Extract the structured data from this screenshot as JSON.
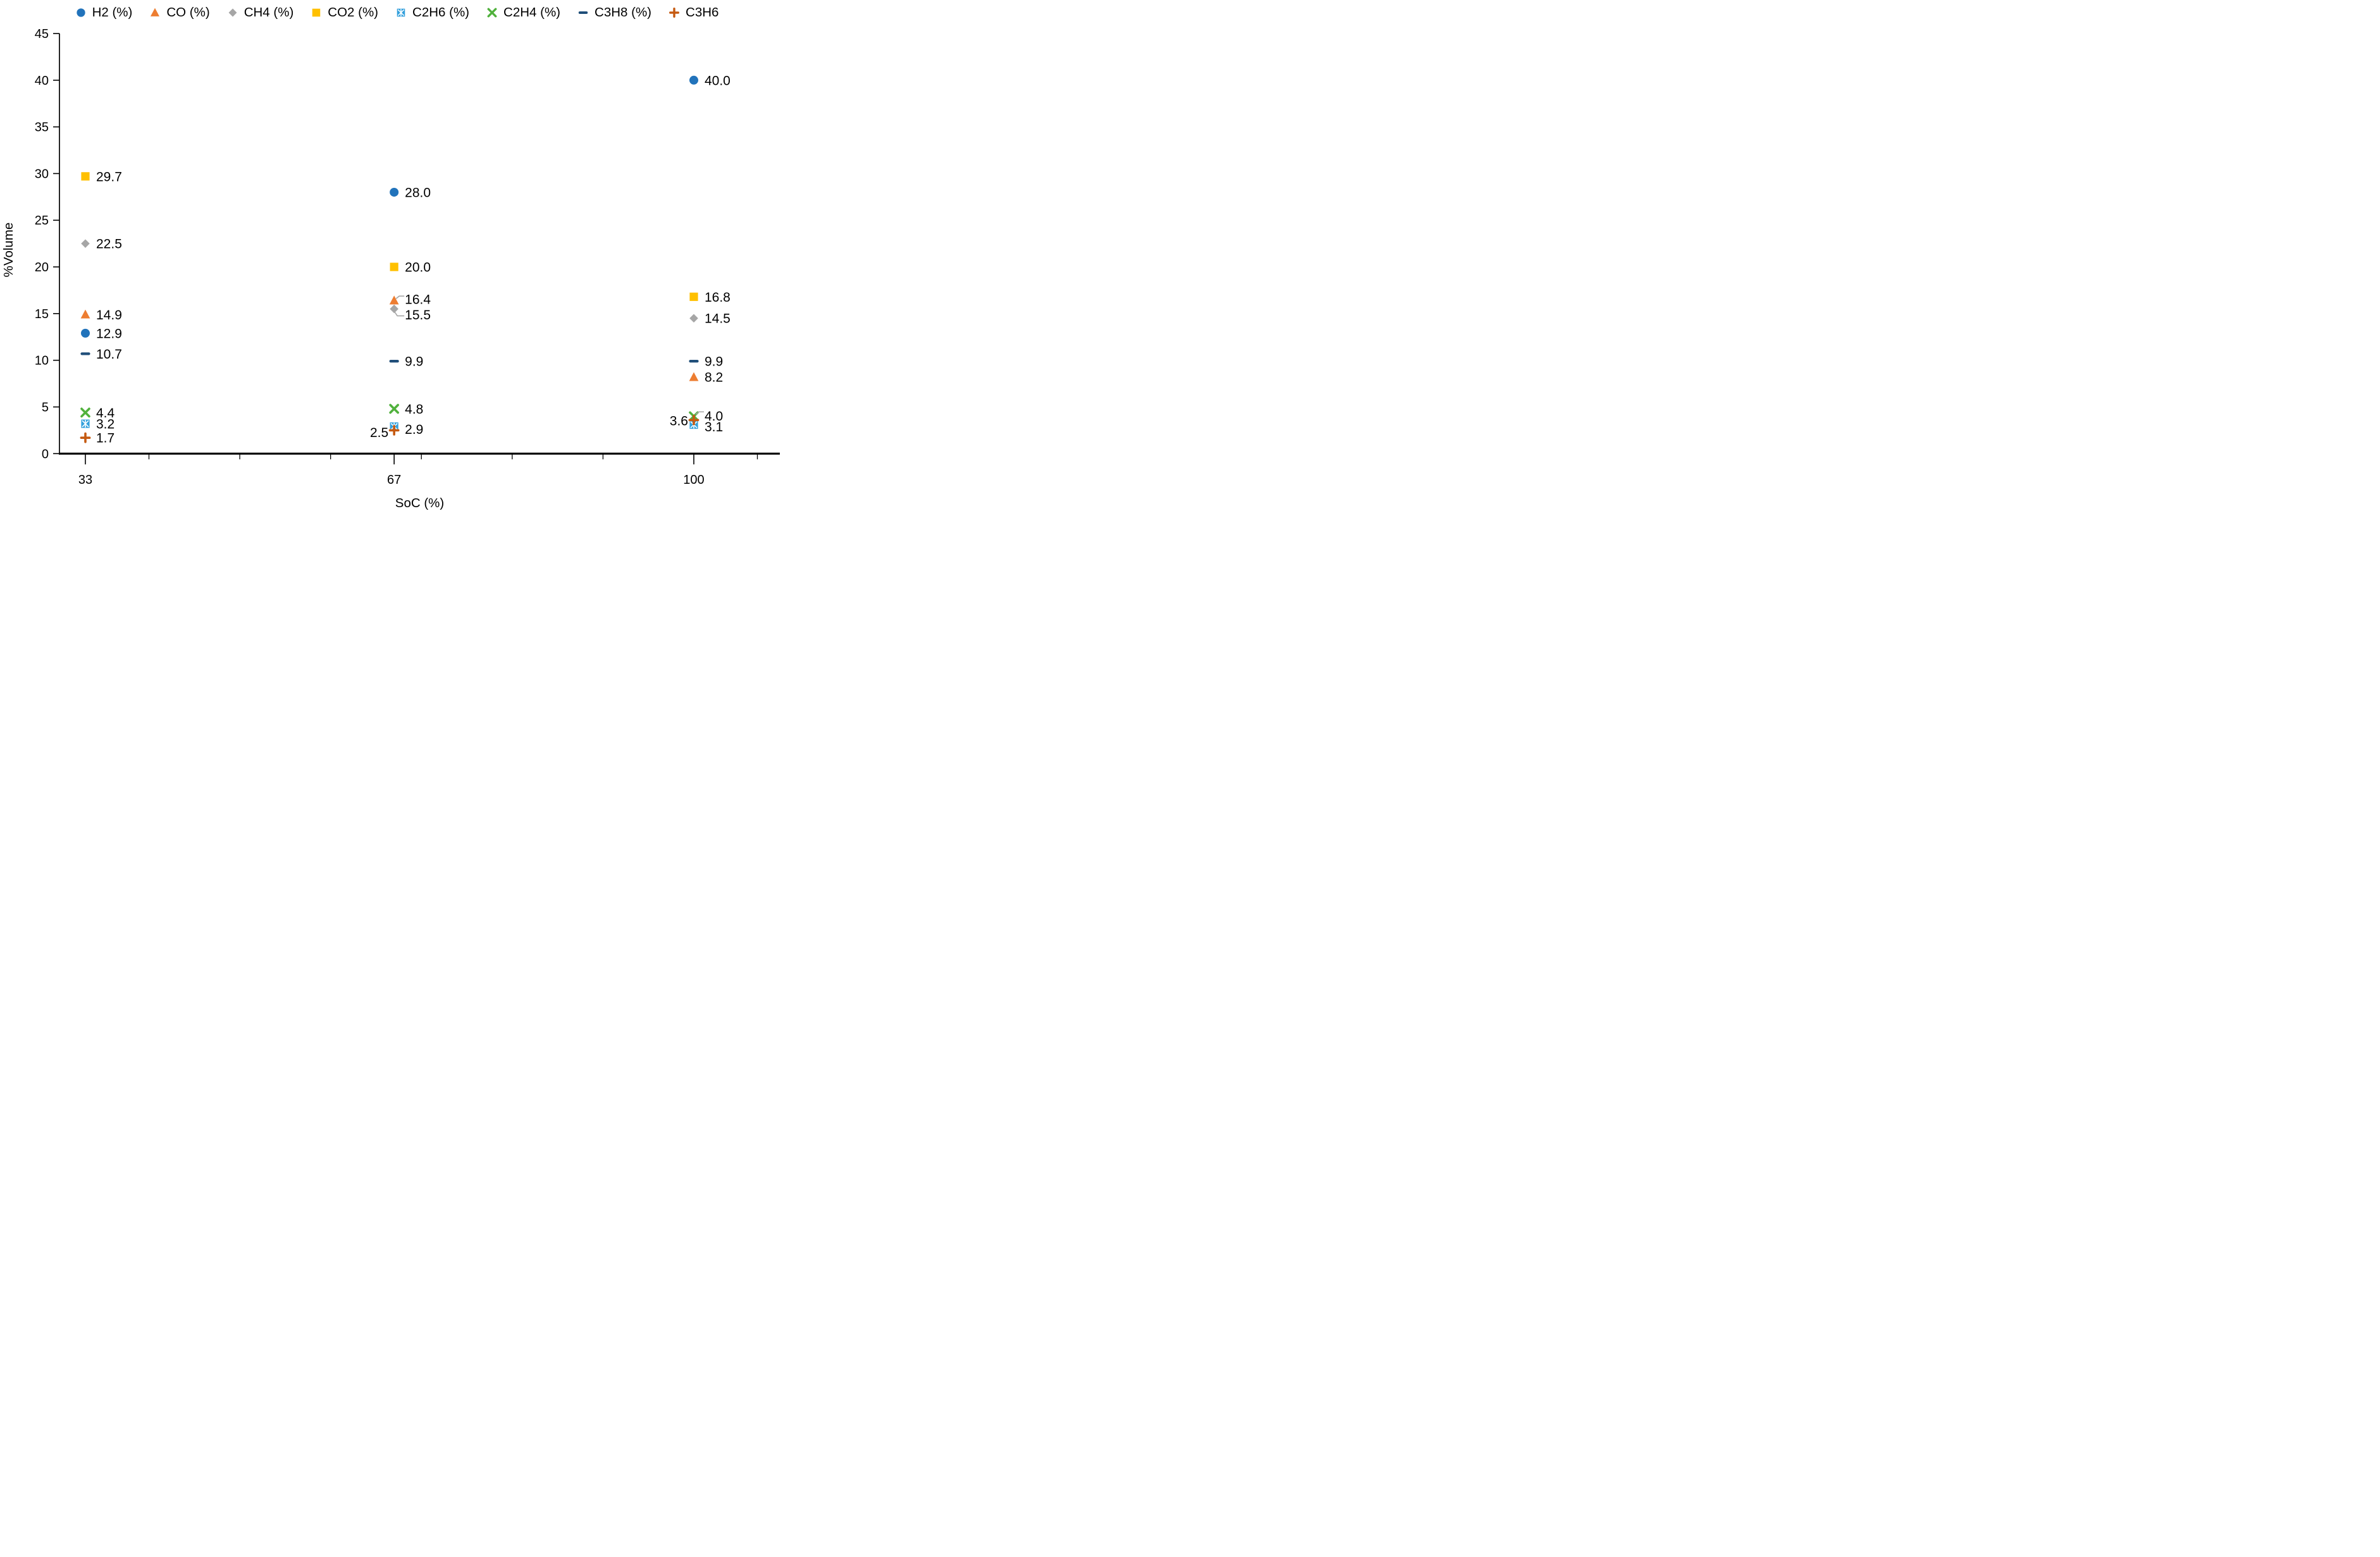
{
  "chart_data": {
    "type": "scatter",
    "title": "",
    "xlabel": "SoC (%)",
    "ylabel": "%Volume",
    "x_categories": [
      33,
      67,
      100
    ],
    "x_tick_labels": [
      "33",
      "67",
      "100"
    ],
    "xlim": [
      30,
      109
    ],
    "ylim": [
      0,
      45
    ],
    "y_ticks": [
      0,
      5,
      10,
      15,
      20,
      25,
      30,
      35,
      40,
      45
    ],
    "x_minor_ticks": [
      40,
      50,
      60,
      70,
      80,
      90,
      107
    ],
    "grid": false,
    "legend_position": "top",
    "label_decimals": 1,
    "leader_color": "#A6A6A6",
    "series": [
      {
        "name": "H2 (%)",
        "marker": "circle",
        "color": "#2173BB",
        "values": [
          12.9,
          28.0,
          40.0
        ]
      },
      {
        "name": "CO (%)",
        "marker": "triangle",
        "color": "#ED7D31",
        "values": [
          14.9,
          16.4,
          8.2
        ]
      },
      {
        "name": "CH4 (%)",
        "marker": "diamond",
        "color": "#A6A6A6",
        "values": [
          22.5,
          15.5,
          14.5
        ]
      },
      {
        "name": "CO2 (%)",
        "marker": "square",
        "color": "#FFC000",
        "values": [
          29.7,
          20.0,
          16.8
        ]
      },
      {
        "name": "C2H6 (%)",
        "marker": "square-x",
        "color": "#33A0DC",
        "values": [
          3.2,
          2.9,
          3.1
        ]
      },
      {
        "name": "C2H4 (%)",
        "marker": "x",
        "color": "#50B13C",
        "values": [
          4.4,
          4.8,
          4.0
        ]
      },
      {
        "name": "C3H8 (%)",
        "marker": "dash",
        "color": "#1F4E79",
        "values": [
          10.7,
          9.9,
          9.9
        ]
      },
      {
        "name": "C3H6",
        "marker": "plus",
        "color": "#C55A11",
        "values": [
          1.7,
          2.5,
          3.6
        ]
      }
    ],
    "label_layout": [
      {
        "series": "CO (%)",
        "x": 67,
        "dy": -2,
        "leader": "flat"
      },
      {
        "series": "CH4 (%)",
        "x": 67,
        "dy": 9,
        "leader": "down"
      },
      {
        "series": "C2H6 (%)",
        "x": 67,
        "dy": 4
      },
      {
        "series": "C3H6",
        "x": 67,
        "side": "left",
        "dy": 3
      },
      {
        "series": "C2H4 (%)",
        "x": 100,
        "dy": -1,
        "leader": "flat"
      },
      {
        "series": "C2H6 (%)",
        "x": 100,
        "dy": 3
      },
      {
        "series": "C3H6",
        "x": 100,
        "side": "left",
        "dy": 1
      }
    ]
  }
}
